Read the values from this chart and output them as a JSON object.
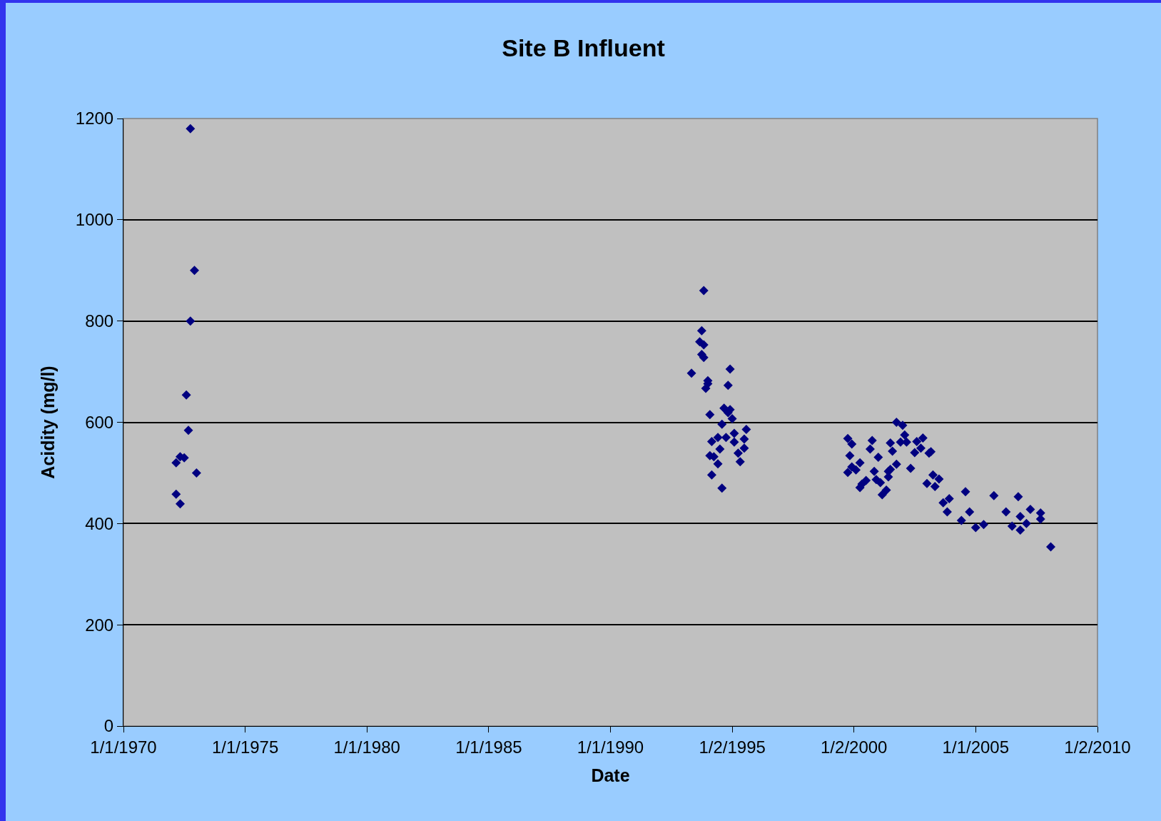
{
  "chart_data": {
    "type": "scatter",
    "title": "Site B Influent",
    "xlabel": "Date",
    "ylabel": "Acidity (mg/l)",
    "x": [
      "1972-03",
      "1972-05",
      "1972-03",
      "1972-05",
      "1972-07",
      "1972-08",
      "1972-09",
      "1972-10",
      "1972-10",
      "1972-12",
      "1973-01",
      "1993-11",
      "1993-10",
      "1993-09",
      "1993-11",
      "1993-10",
      "1993-11",
      "1994-12",
      "1993-05",
      "1994-01",
      "1994-01",
      "1993-12",
      "1994-11",
      "1994-09",
      "1994-12",
      "1994-11",
      "1995-01",
      "1994-02",
      "1994-08",
      "1995-08",
      "1995-02",
      "1995-07",
      "1994-10",
      "1994-03",
      "1994-06",
      "1995-02",
      "1995-07",
      "1994-07",
      "1995-04",
      "1994-02",
      "1994-04",
      "1995-05",
      "1994-06",
      "1994-03",
      "1994-08",
      "2001-10",
      "2002-01",
      "1999-10",
      "1999-12",
      "2000-10",
      "2000-09",
      "2002-02",
      "2001-07",
      "2001-08",
      "2001-12",
      "2002-03",
      "2002-11",
      "2002-08",
      "2002-10",
      "2002-07",
      "2003-02",
      "2003-03",
      "1999-11",
      "2001-01",
      "2000-04",
      "2001-10",
      "1999-12",
      "2000-02",
      "1999-10",
      "2002-05",
      "2000-11",
      "2001-06",
      "2001-07",
      "2001-06",
      "2003-04",
      "2003-07",
      "2000-12",
      "2001-02",
      "2000-07",
      "2000-05",
      "2000-04",
      "2003-01",
      "2003-05",
      "2001-05",
      "2001-03",
      "2004-08",
      "2005-10",
      "2006-10",
      "2003-12",
      "2003-09",
      "2007-04",
      "2003-11",
      "2004-10",
      "2006-04",
      "2007-09",
      "2006-11",
      "2007-09",
      "2004-06",
      "2007-02",
      "2005-05",
      "2005-01",
      "2006-07",
      "2006-11",
      "2008-02"
    ],
    "values": [
      520,
      439,
      458,
      532,
      530,
      654,
      584,
      800,
      1180,
      900,
      500,
      860,
      781,
      759,
      753,
      734,
      728,
      705,
      697,
      682,
      676,
      667,
      673,
      628,
      625,
      619,
      607,
      615,
      596,
      586,
      578,
      567,
      570,
      562,
      570,
      561,
      549,
      547,
      539,
      534,
      532,
      522,
      518,
      496,
      470,
      600,
      594,
      568,
      557,
      564,
      547,
      575,
      559,
      543,
      561,
      561,
      569,
      562,
      549,
      540,
      539,
      542,
      534,
      531,
      520,
      517,
      512,
      506,
      501,
      509,
      503,
      503,
      507,
      492,
      496,
      488,
      487,
      481,
      485,
      478,
      471,
      479,
      473,
      466,
      457,
      463,
      455,
      453,
      449,
      441,
      428,
      423,
      423,
      423,
      421,
      414,
      409,
      406,
      400,
      398,
      392,
      395,
      387,
      354
    ],
    "color": "#000080",
    "marker": "diamond",
    "grid": "y",
    "xlim": [
      "1970-01-01",
      "2010-01-02"
    ],
    "xticks": [
      {
        "value": "1970-01-01",
        "label": "1/1/1970"
      },
      {
        "value": "1975-01-01",
        "label": "1/1/1975"
      },
      {
        "value": "1980-01-01",
        "label": "1/1/1980"
      },
      {
        "value": "1985-01-01",
        "label": "1/1/1985"
      },
      {
        "value": "1990-01-01",
        "label": "1/1/1990"
      },
      {
        "value": "1995-01-02",
        "label": "1/2/1995"
      },
      {
        "value": "2000-01-02",
        "label": "1/2/2000"
      },
      {
        "value": "2005-01-01",
        "label": "1/1/2005"
      },
      {
        "value": "2010-01-02",
        "label": "1/2/2010"
      }
    ],
    "ylim": [
      0,
      1200
    ],
    "yticks": [
      0,
      200,
      400,
      600,
      800,
      1000,
      1200
    ]
  }
}
